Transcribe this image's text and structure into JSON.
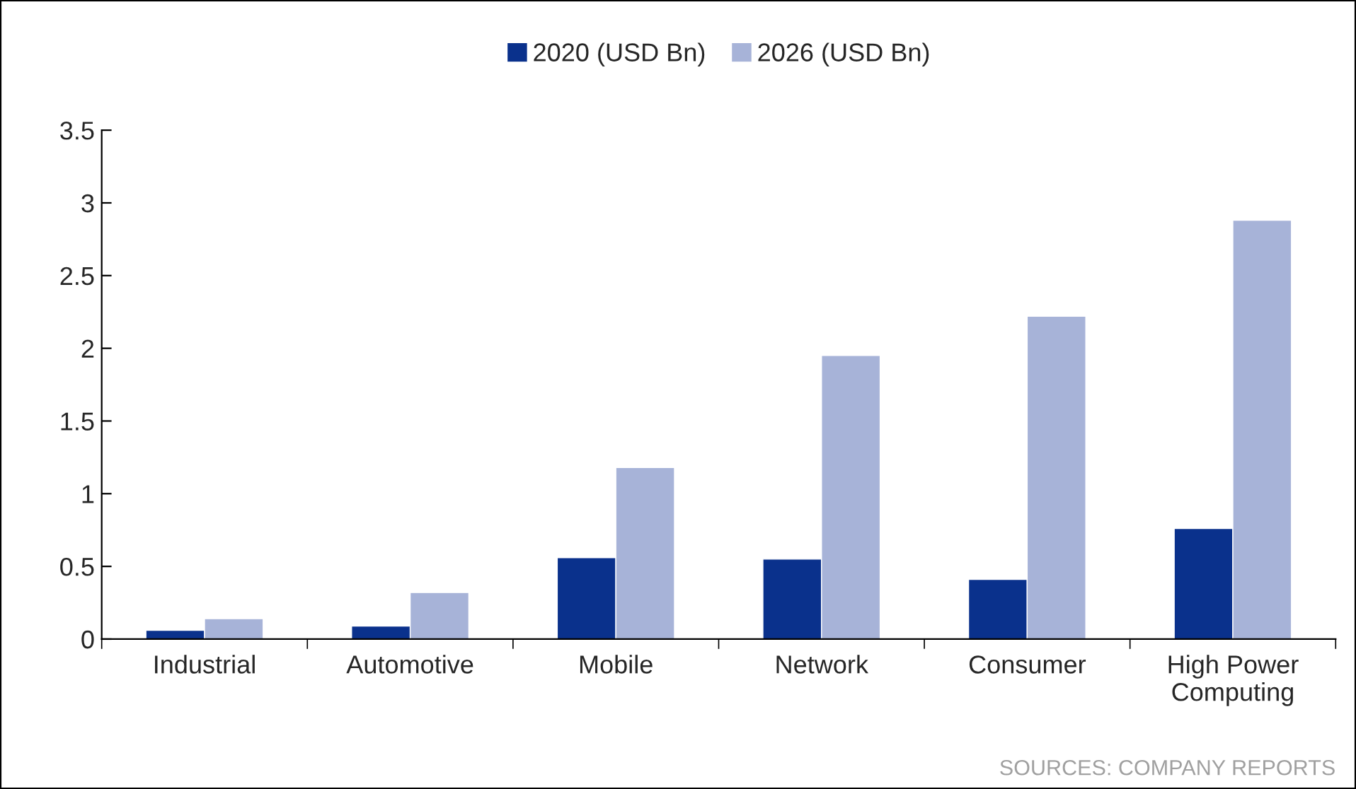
{
  "chart_data": {
    "type": "bar",
    "categories": [
      "Industrial",
      "Automotive",
      "Mobile",
      "Network",
      "Consumer",
      "High Power\nComputing"
    ],
    "series": [
      {
        "name": "2020 (USD Bn)",
        "color": "#0a318c",
        "values": [
          0.06,
          0.09,
          0.56,
          0.55,
          0.41,
          0.76
        ]
      },
      {
        "name": "2026 (USD Bn)",
        "color": "#a7b3d8",
        "values": [
          0.14,
          0.32,
          1.18,
          1.95,
          2.22,
          2.88
        ]
      }
    ],
    "ylim": [
      0,
      3.5
    ],
    "yticks": [
      0,
      0.5,
      1,
      1.5,
      2,
      2.5,
      3,
      3.5
    ],
    "grid": false,
    "legend": "top",
    "annotations": [
      "SOURCES: COMPANY REPORTS"
    ]
  }
}
